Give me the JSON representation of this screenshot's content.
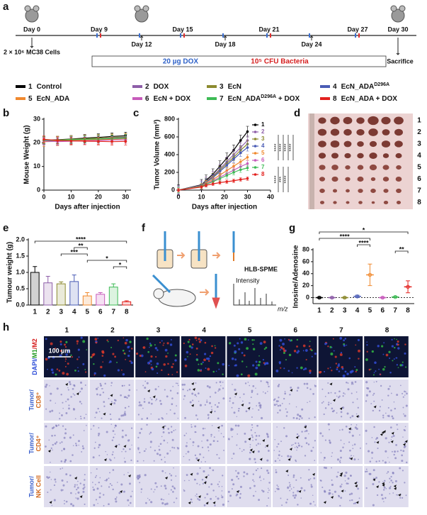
{
  "panels": [
    "a",
    "b",
    "c",
    "d",
    "e",
    "f",
    "g",
    "h"
  ],
  "timeline": {
    "days": [
      "Day 0",
      "Day 9",
      "Day 12",
      "Day 15",
      "Day 18",
      "Day 21",
      "Day 24",
      "Day 27",
      "Day 30"
    ],
    "cells": "2 × 10⁶ MC38 Cells",
    "dox": "20 µg DOX",
    "bacteria": "10⁵ CFU Bacteria",
    "end": "Sacrifice"
  },
  "legend": [
    {
      "number": "1",
      "name": "Control",
      "color": "#000000"
    },
    {
      "number": "2",
      "name": "DOX",
      "color": "#8e5ea8"
    },
    {
      "number": "3",
      "name": "EcN",
      "color": "#8c8a2f"
    },
    {
      "number": "4",
      "name": "EcN_ADA",
      "sup": "D296A",
      "color": "#4a5cb5"
    },
    {
      "number": "5",
      "name": "EcN_ADA",
      "color": "#f0892e"
    },
    {
      "number": "6",
      "name": "EcN + DOX",
      "color": "#c75bbb"
    },
    {
      "number": "7",
      "name": "EcN_ADA",
      "sup": "D296A",
      "suffix": " + DOX",
      "color": "#3dbb55"
    },
    {
      "number": "8",
      "name": "EcN_ADA + DOX",
      "color": "#e3211e"
    }
  ],
  "chart_data": [
    {
      "type": "line",
      "y_label": "Mouse Weight (g)",
      "x_label": "Days after injection",
      "x": [
        0,
        5,
        10,
        15,
        20,
        25,
        30
      ],
      "xlim": [
        0,
        32
      ],
      "xticks": [
        0,
        10,
        20,
        30
      ],
      "ylim": [
        0,
        30
      ],
      "yticks": [
        0,
        10,
        20,
        30
      ],
      "series": [
        {
          "color": "#000000",
          "values": [
            21,
            21.3,
            21.6,
            22,
            22.3,
            22.7,
            23
          ],
          "error": 1.5
        },
        {
          "color": "#8e5ea8",
          "values": [
            20.5,
            20.6,
            21,
            21.3,
            21.5,
            21.8,
            22
          ],
          "error": 1.5
        },
        {
          "color": "#8c8a2f",
          "values": [
            21,
            21.2,
            21.5,
            21.7,
            22,
            22.3,
            22.5
          ],
          "error": 1.5
        },
        {
          "color": "#4a5cb5",
          "values": [
            20.8,
            21,
            21.2,
            21.4,
            21.6,
            21.9,
            22.2
          ],
          "error": 1.5
        },
        {
          "color": "#f0892e",
          "values": [
            20.5,
            20.8,
            21,
            21.2,
            21.3,
            21.5,
            21.8
          ],
          "error": 2
        },
        {
          "color": "#c75bbb",
          "values": [
            20.8,
            20.5,
            20.7,
            20.9,
            21,
            21.2,
            21.3
          ],
          "error": 1.5
        },
        {
          "color": "#3dbb55",
          "values": [
            21.2,
            21,
            21.3,
            21.5,
            21.6,
            21.8,
            22
          ],
          "error": 1.5
        },
        {
          "color": "#e3211e",
          "values": [
            21.5,
            21,
            20.8,
            20.7,
            20.6,
            20.5,
            20.6
          ],
          "error": 1.5
        }
      ]
    },
    {
      "type": "line",
      "y_label": "Tumor Volume (mm³)",
      "x_label": "Days after injection",
      "x": [
        0,
        10,
        12,
        15,
        18,
        21,
        24,
        27,
        30
      ],
      "xlim": [
        0,
        40
      ],
      "xticks": [
        0,
        10,
        20,
        30,
        40
      ],
      "ylim": [
        0,
        800
      ],
      "yticks": [
        0,
        200,
        400,
        600,
        800
      ],
      "annotations": [
        "****",
        "****",
        "****",
        "****",
        "****",
        "***",
        "****"
      ],
      "series": [
        {
          "name": "1",
          "color": "#000000",
          "values": [
            0,
            60,
            110,
            180,
            270,
            360,
            450,
            560,
            660
          ],
          "error": 60
        },
        {
          "name": "2",
          "color": "#8e5ea8",
          "values": [
            0,
            55,
            100,
            160,
            240,
            320,
            400,
            480,
            560
          ],
          "error": 50
        },
        {
          "name": "3",
          "color": "#8c8a2f",
          "values": [
            0,
            50,
            95,
            150,
            225,
            300,
            370,
            450,
            520
          ],
          "error": 40
        },
        {
          "name": "4",
          "color": "#4a5cb5",
          "values": [
            0,
            50,
            90,
            140,
            210,
            280,
            350,
            420,
            480
          ],
          "error": 40
        },
        {
          "name": "5",
          "color": "#f0892e",
          "values": [
            0,
            45,
            80,
            120,
            170,
            220,
            270,
            320,
            370
          ],
          "error": 30
        },
        {
          "name": "6",
          "color": "#c75bbb",
          "values": [
            0,
            40,
            70,
            105,
            145,
            185,
            225,
            265,
            300
          ],
          "error": 30
        },
        {
          "name": "7",
          "color": "#3dbb55",
          "values": [
            0,
            40,
            65,
            95,
            130,
            165,
            200,
            230,
            250
          ],
          "error": 30
        },
        {
          "name": "8",
          "color": "#e3211e",
          "values": [
            0,
            35,
            55,
            70,
            85,
            95,
            105,
            120,
            130
          ],
          "error": 20
        }
      ]
    },
    {
      "type": "bar",
      "y_label": "Tumour weight (g)",
      "categories": [
        "1",
        "2",
        "3",
        "4",
        "5",
        "6",
        "7",
        "8"
      ],
      "values": [
        1.0,
        0.68,
        0.65,
        0.72,
        0.28,
        0.33,
        0.55,
        0.1
      ],
      "errors": [
        0.18,
        0.2,
        0.06,
        0.2,
        0.1,
        0.05,
        0.1,
        0.03
      ],
      "colors": [
        "#000000",
        "#8e5ea8",
        "#8c8a2f",
        "#4a5cb5",
        "#f0892e",
        "#c75bbb",
        "#3dbb55",
        "#e3211e"
      ],
      "ylim": [
        0,
        2
      ],
      "yticks": [
        {
          "value": 0,
          "label": "0.0"
        },
        0.5,
        {
          "value": 1,
          "label": "1.0"
        },
        1.5,
        {
          "value": 2,
          "label": "2.0"
        }
      ],
      "brackets": [
        {
          "groups": [
            "1",
            "8"
          ],
          "label": "****"
        },
        {
          "groups": [
            "4",
            "5"
          ],
          "label": "**"
        },
        {
          "groups": [
            "3",
            "5"
          ],
          "label": "***"
        },
        {
          "groups": [
            "5",
            "8"
          ],
          "label": "*"
        },
        {
          "groups": [
            "7",
            "8"
          ],
          "label": "*"
        }
      ]
    },
    {
      "type": "dot",
      "y_label": "Inosine/Adenosine",
      "categories": [
        "1",
        "2",
        "3",
        "4",
        "5",
        "6",
        "7",
        "8"
      ],
      "values": [
        0,
        0,
        0,
        2,
        38,
        0,
        1,
        18
      ],
      "errors": [
        1,
        1,
        1,
        2,
        18,
        1,
        1,
        10
      ],
      "colors": [
        "#000000",
        "#8e5ea8",
        "#8c8a2f",
        "#4a5cb5",
        "#f0892e",
        "#c75bbb",
        "#3dbb55",
        "#e3211e"
      ],
      "ylim": [
        -10,
        80
      ],
      "yticks": [
        0,
        20,
        40,
        60,
        80
      ],
      "zero_line": true,
      "brackets": [
        {
          "groups": [
            "1",
            "8"
          ],
          "label": "*"
        },
        {
          "groups": [
            "1",
            "5"
          ],
          "label": "****"
        },
        {
          "groups": [
            "4",
            "5"
          ],
          "label": "****"
        },
        {
          "groups": [
            "7",
            "8"
          ],
          "label": "**"
        }
      ]
    }
  ],
  "tumor_photo": {
    "labels": [
      "1",
      "2",
      "3",
      "4",
      "5",
      "6",
      "7",
      "8"
    ]
  },
  "schematic": {
    "method": "HLB-SPME",
    "y_axis": "Intensity",
    "x_axis": "m/z"
  },
  "histology": {
    "columns": [
      "1",
      "2",
      "3",
      "4",
      "5",
      "6",
      "7",
      "8"
    ],
    "scale_bar": "100 µm",
    "rows": [
      [
        {
          "text": "DAPI/",
          "color": "#2a4bd7"
        },
        {
          "text": "M1",
          "color": "#2a9d2a"
        },
        {
          "text": "/M2",
          "color": "#d62020"
        }
      ],
      [
        {
          "text": "Tumor/",
          "color": "#3a5fcd"
        },
        {
          "text": "CD8⁺",
          "color": "#d2691e"
        }
      ],
      [
        {
          "text": "Tumor/",
          "color": "#3a5fcd"
        },
        {
          "text": "CD4⁺",
          "color": "#d2691e"
        }
      ],
      [
        {
          "text": "Tumor/",
          "color": "#3a5fcd"
        },
        {
          "text": "NK Cell",
          "color": "#d2691e"
        }
      ]
    ]
  }
}
